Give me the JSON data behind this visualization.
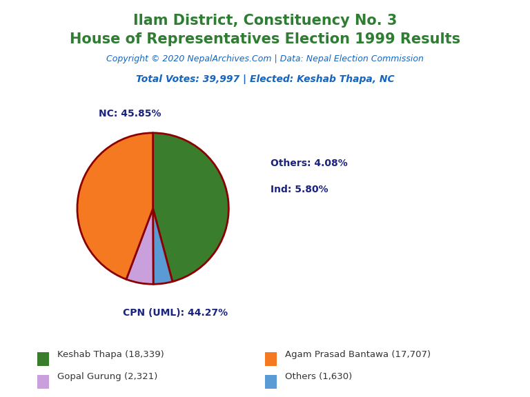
{
  "title_line1": "Ilam District, Constituency No. 3",
  "title_line2": "House of Representatives Election 1999 Results",
  "title_color": "#2e7d32",
  "copyright_text": "Copyright © 2020 NepalArchives.Com | Data: Nepal Election Commission",
  "copyright_color": "#1565c0",
  "total_votes_text": "Total Votes: 39,997 | Elected: Keshab Thapa, NC",
  "total_votes_color": "#1565c0",
  "slices": [
    {
      "label": "NC",
      "pct": 45.85,
      "votes": 18339,
      "color": "#3a7d2c",
      "candidate": "Keshab Thapa"
    },
    {
      "label": "Others",
      "pct": 4.08,
      "votes": 1630,
      "color": "#5b9bd5",
      "candidate": "Others"
    },
    {
      "label": "Ind",
      "pct": 5.8,
      "votes": 2321,
      "color": "#c9a0dc",
      "candidate": "Gopal Gurung"
    },
    {
      "label": "CPN (UML)",
      "pct": 44.27,
      "votes": 17707,
      "color": "#f47920",
      "candidate": "Agam Prasad Bantawa"
    }
  ],
  "wedge_edge_color": "#8b0000",
  "label_color": "#1a237e",
  "background_color": "#ffffff",
  "legend_items": [
    {
      "color": "#3a7d2c",
      "label": "Keshab Thapa (18,339)"
    },
    {
      "color": "#f47920",
      "label": "Agam Prasad Bantawa (17,707)"
    },
    {
      "color": "#c9a0dc",
      "label": "Gopal Gurung (2,321)"
    },
    {
      "color": "#5b9bd5",
      "label": "Others (1,630)"
    }
  ]
}
